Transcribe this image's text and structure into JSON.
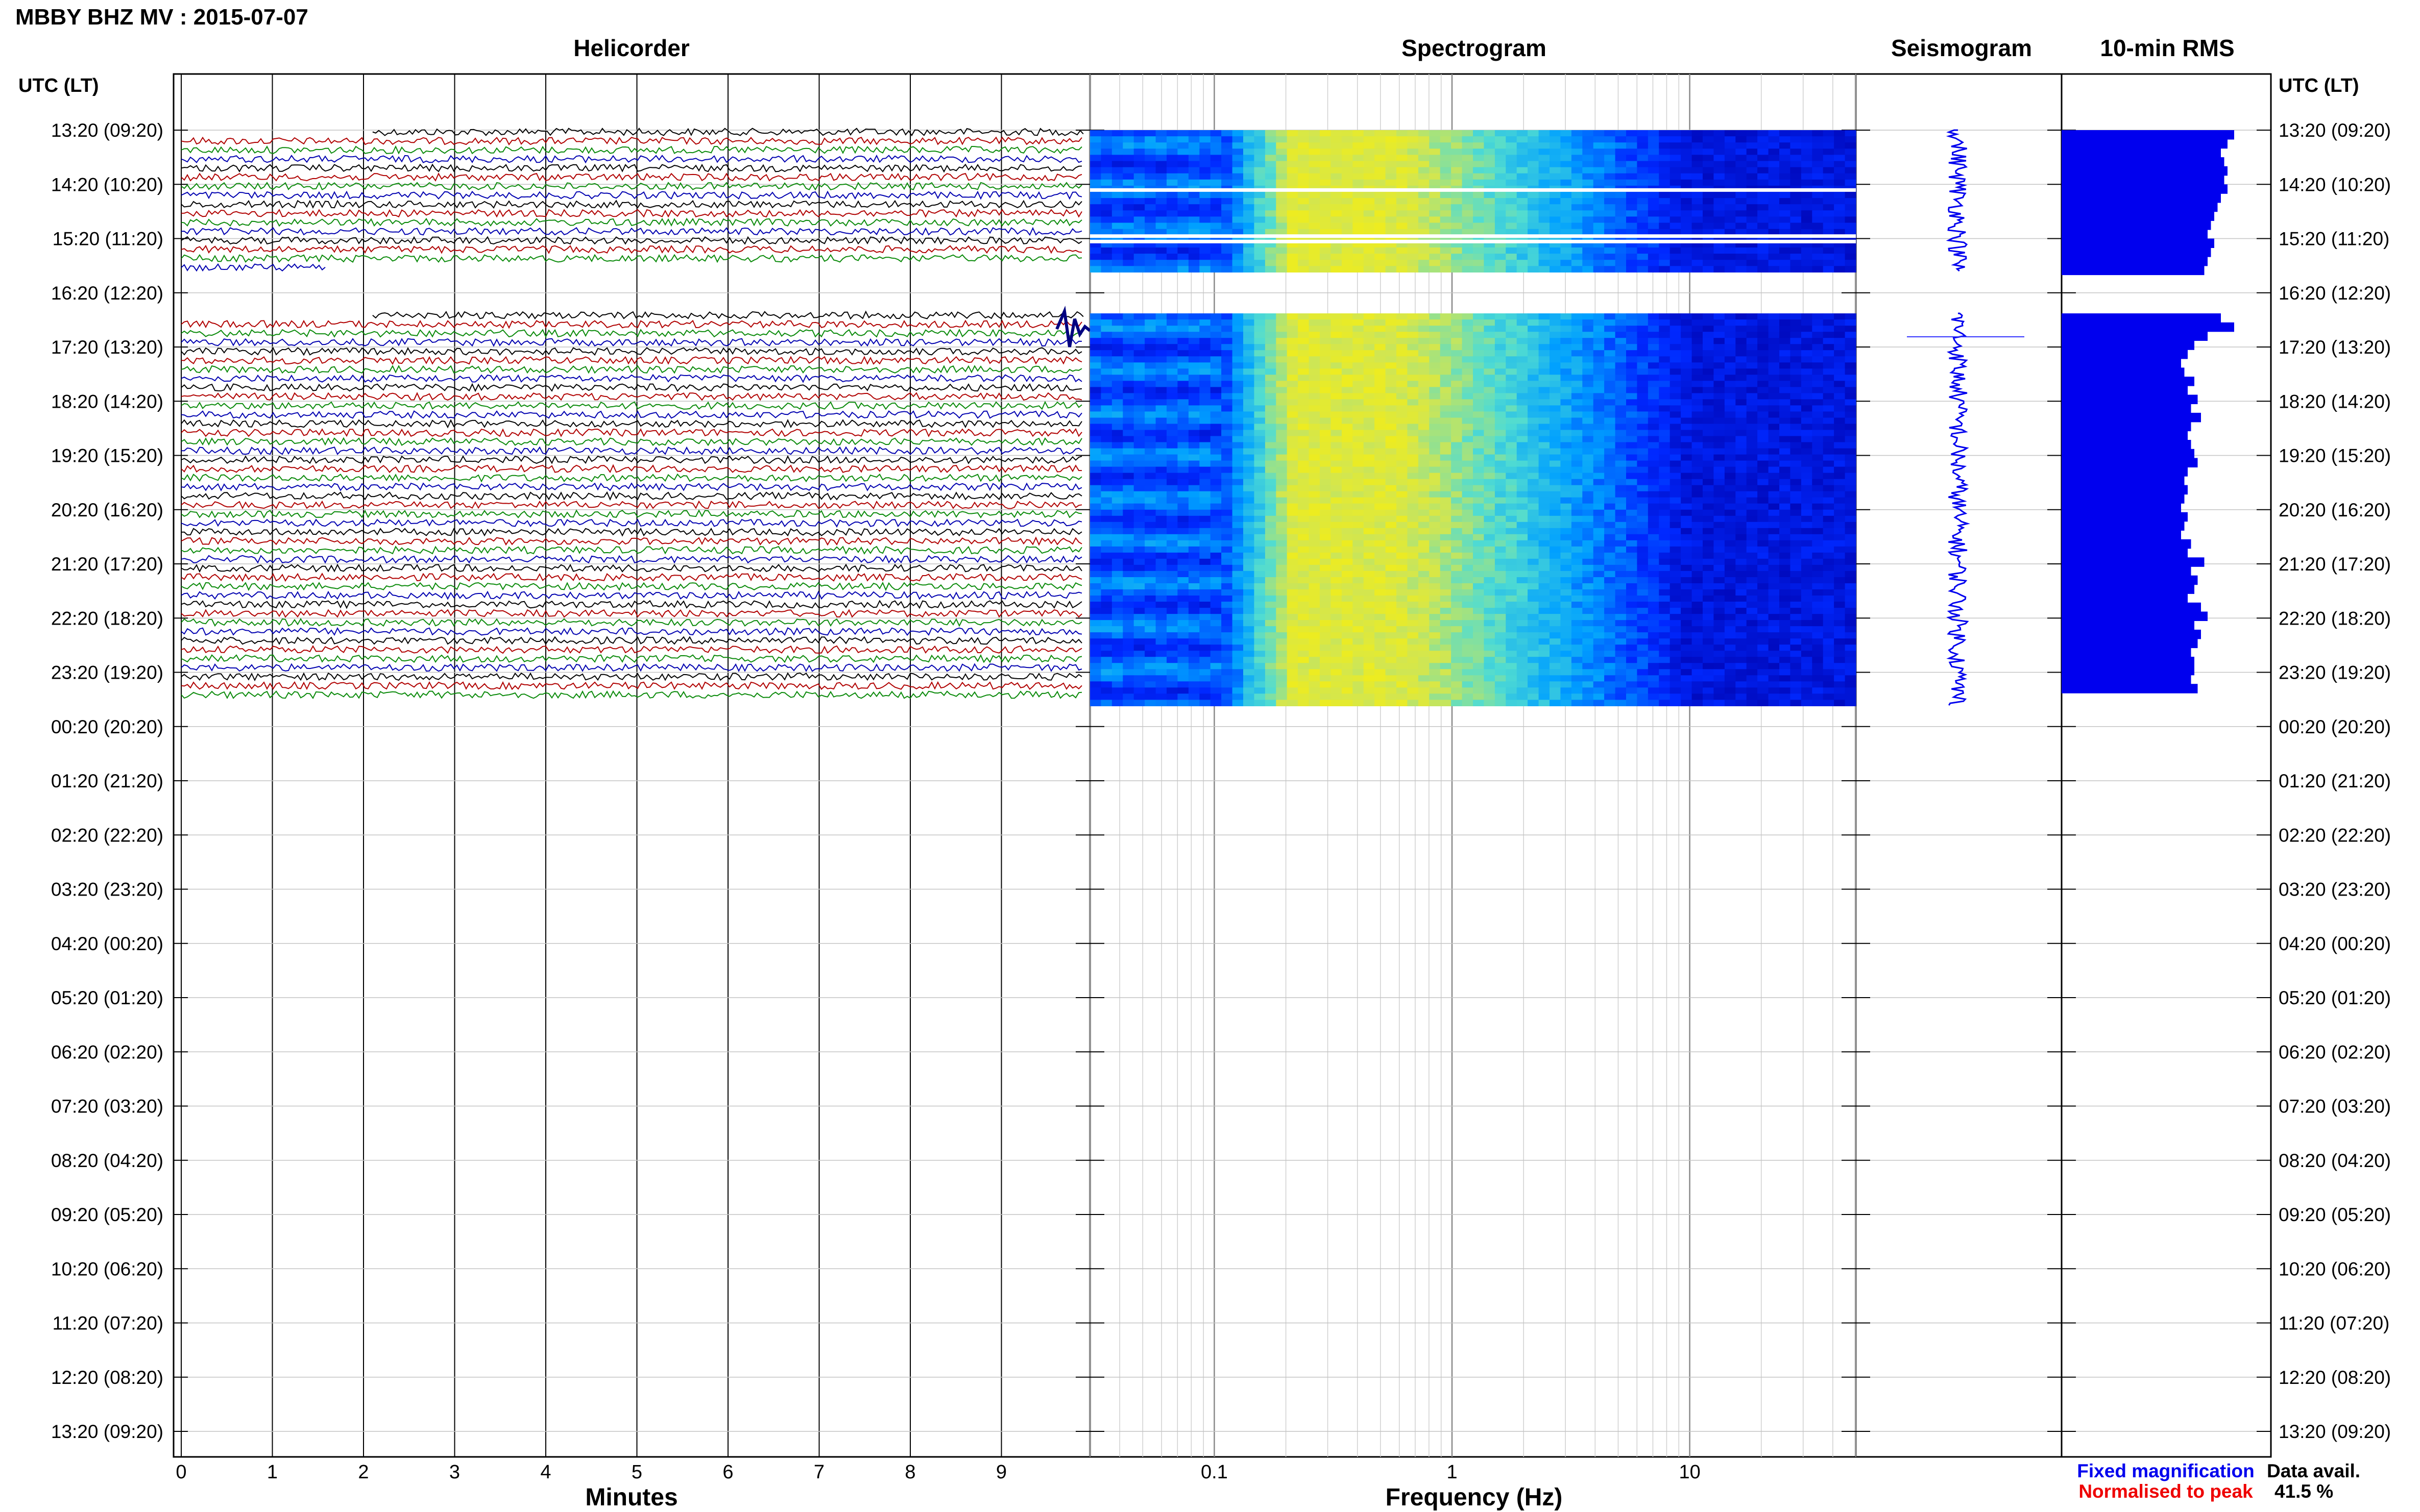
{
  "page_title": "MBBY BHZ MV : 2015-07-07",
  "panels": {
    "helicorder": "Helicorder",
    "spectrogram": "Spectrogram",
    "seismogram": "Seismogram",
    "rms": "10-min RMS"
  },
  "time_axis": {
    "header": "UTC (LT)",
    "labels": [
      "13:20 (09:20)",
      "14:20 (10:20)",
      "15:20 (11:20)",
      "16:20 (12:20)",
      "17:20 (13:20)",
      "18:20 (14:20)",
      "19:20 (15:20)",
      "20:20 (16:20)",
      "21:20 (17:20)",
      "22:20 (18:20)",
      "23:20 (19:20)",
      "00:20 (20:20)",
      "01:20 (21:20)",
      "02:20 (22:20)",
      "03:20 (23:20)",
      "04:20 (00:20)",
      "05:20 (01:20)",
      "06:20 (02:20)",
      "07:20 (03:20)",
      "08:20 (04:20)",
      "09:20 (05:20)",
      "10:20 (06:20)",
      "11:20 (07:20)",
      "12:20 (08:20)",
      "13:20 (09:20)"
    ]
  },
  "helicorder_axis": {
    "xlabel": "Minutes",
    "ticks": [
      "0",
      "1",
      "2",
      "3",
      "4",
      "5",
      "6",
      "7",
      "8",
      "9"
    ],
    "trace_colors": [
      "#000000",
      "#b00000",
      "#0a8a0a",
      "#0000b0"
    ]
  },
  "spectrogram_axis": {
    "xlabel": "Frequency (Hz)",
    "ticks": [
      "0.1",
      "1",
      "10"
    ],
    "scale": "log",
    "xlim": [
      0.03,
      50
    ]
  },
  "legend": {
    "fixed": "Fixed magnification",
    "normalised": "Normalised to peak",
    "fixed_color": "#0000ee",
    "normalised_color": "#ee0000"
  },
  "availability": {
    "label": "Data avail.",
    "value": "41.5 %"
  },
  "chart_data": {
    "type": "heatmap",
    "title": "MBBY BHZ MV : 2015-07-07",
    "panels": [
      "Helicorder",
      "Spectrogram",
      "Seismogram",
      "10-min RMS"
    ],
    "rows_per_hour": 6,
    "data_blocks": [
      {
        "start_hour_index": 0.0,
        "end_hour_index": 2.62
      },
      {
        "start_hour_index": 3.38,
        "end_hour_index": 10.62
      }
    ],
    "spectral_peak_hz": [
      0.2,
      0.6
    ],
    "rms_bars": [
      0.52,
      0.5,
      0.48,
      0.49,
      0.5,
      0.49,
      0.5,
      0.48,
      0.47,
      0.46,
      0.45,
      0.44,
      0.46,
      0.45,
      0.44,
      0.43,
      0.48,
      0.52,
      0.44,
      0.4,
      0.38,
      0.36,
      0.37,
      0.4,
      0.38,
      0.41,
      0.39,
      0.42,
      0.39,
      0.38,
      0.39,
      0.4,
      0.41,
      0.38,
      0.37,
      0.38,
      0.37,
      0.36,
      0.38,
      0.37,
      0.36,
      0.39,
      0.38,
      0.43,
      0.39,
      0.41,
      0.4,
      0.38,
      0.42,
      0.44,
      0.4,
      0.42,
      0.41,
      0.39,
      0.4,
      0.4,
      0.39,
      0.41
    ]
  }
}
